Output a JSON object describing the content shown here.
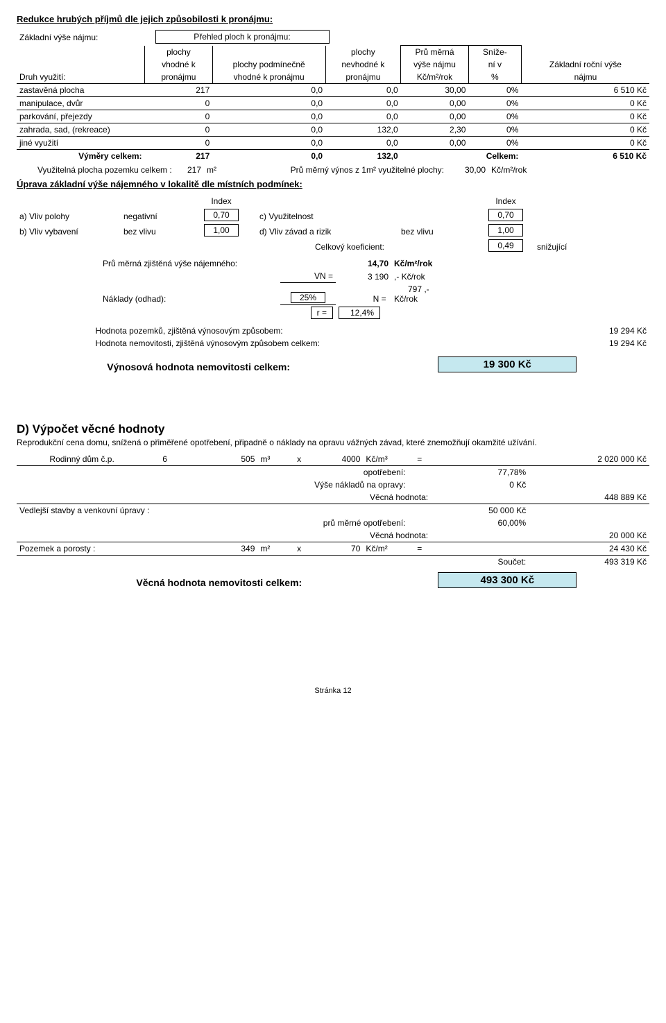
{
  "section1_title": "Redukce hrubých příjmů dle jejich způsobilosti k pronájmu:",
  "overview_label_left": "Základní výše nájmu:",
  "overview_label_right": "Přehled ploch k pronájmu:",
  "headers": {
    "col0": "Druh využití:",
    "col1a": "plochy",
    "col1b": "vhodné k",
    "col1c": "pronájmu",
    "col2a": "plochy podmínečně",
    "col2b": "vhodné k pronájmu",
    "col3a": "plochy",
    "col3b": "nevhodné k",
    "col3c": "pronájmu",
    "col4a": "Prů měrná",
    "col4b": "výše nájmu",
    "col4c": "Kč/m²/rok",
    "col5a": "Sníže-",
    "col5b": "ní v",
    "col5c": "%",
    "col6a": "Základní roční výše",
    "col6b": "nájmu"
  },
  "rows": [
    {
      "label": "zastavěná plocha",
      "c1": "217",
      "c2": "0,0",
      "c3": "0,0",
      "c4": "30,00",
      "c5": "0%",
      "c6": "6 510 Kč"
    },
    {
      "label": "manipulace, dvůr",
      "c1": "0",
      "c2": "0,0",
      "c3": "0,0",
      "c4": "0,00",
      "c5": "0%",
      "c6": "0 Kč"
    },
    {
      "label": "parkování, přejezdy",
      "c1": "0",
      "c2": "0,0",
      "c3": "0,0",
      "c4": "0,00",
      "c5": "0%",
      "c6": "0 Kč"
    },
    {
      "label": "zahrada, sad, (rekreace)",
      "c1": "0",
      "c2": "0,0",
      "c3": "132,0",
      "c4": "2,30",
      "c5": "0%",
      "c6": "0 Kč"
    },
    {
      "label": "jiné využití",
      "c1": "0",
      "c2": "0,0",
      "c3": "0,0",
      "c4": "0,00",
      "c5": "0%",
      "c6": "0 Kč"
    }
  ],
  "totals": {
    "label": "Výměry celkem:",
    "c1": "217",
    "c2": "0,0",
    "c3": "132,0",
    "celkem_label": "Celkem:",
    "c6": "6 510 Kč"
  },
  "usable_area_label": "Využitelná plocha pozemku celkem :",
  "usable_area_val": "217",
  "usable_area_unit": "m²",
  "avg_yield_label": "Prů měrný výnos z 1m² využitelné plochy:",
  "avg_yield_val": "30,00",
  "avg_yield_unit": "Kč/m²/rok",
  "section2_title": "Úprava základní výše nájemného v lokalitě dle místních podmínek:",
  "index_label": "Index",
  "i_a_label": "a) Vliv polohy",
  "i_a_text": "negativní",
  "i_a_val": "0,70",
  "i_c_label": "c) Využitelnost",
  "i_c_val": "0,70",
  "i_b_label": "b) Vliv vybavení",
  "i_b_text": "bez vlivu",
  "i_b_val": "1,00",
  "i_d_label": "d) Vliv závad a rizik",
  "i_d_text": "bez vlivu",
  "i_d_val": "1,00",
  "coef_label": "Celkový koeficient:",
  "coef_val": "0,49",
  "coef_effect": "snižující",
  "avg_rent_label": "Prů měrná zjištěná výše nájemného:",
  "avg_rent_val": "14,70",
  "avg_rent_unit": "Kč/m²/rok",
  "vn_label": "VN =",
  "vn_val": "3 190",
  "vn_unit": ",- Kč/rok",
  "naklady_label": "Náklady (odhad):",
  "naklady_pct": "25%",
  "n_label": "N =",
  "n_val": "797",
  "n_unit": ",- Kč/rok",
  "r_label": "r =",
  "r_val": "12,4%",
  "result1_label": "Hodnota pozemků, zjištěná výnosovým způsobem:",
  "result1_val": "19 294 Kč",
  "result2_label": "Hodnota nemovitosti, zjištěná výnosovým způsobem celkem:",
  "result2_val": "19 294 Kč",
  "result3_label": "Výnosová hodnota nemovitosti celkem:",
  "result3_val": "19 300 Kč",
  "sectionD_title": "D) Výpočet věcné hodnoty",
  "sectionD_desc": "Reprodukční cena domu, snížená o přiměřené opotřebení, připadně o náklady na opravu vážných závad, které znemožňují okamžité užívání.",
  "rd_label": "Rodinný dům č.p.",
  "rd_num": "6",
  "rd_vol": "505",
  "rd_vol_unit": "m³",
  "rd_x": "x",
  "rd_price": "4000",
  "rd_price_unit": "Kč/m³",
  "rd_eq": "=",
  "rd_total": "2 020 000 Kč",
  "opot_label": "opotřebení:",
  "opot_val": "77,78%",
  "repairs_label": "Výše nákladů na opravy:",
  "repairs_val": "0 Kč",
  "vecna1_label": "Věcná hodnota:",
  "vecna1_val": "448 889 Kč",
  "vedlejsi_label": "Vedlejší stavby a venkovní úpravy :",
  "vedlejsi_val": "50 000 Kč",
  "prum_opot_label": "prů měrné opotřebení:",
  "prum_opot_val": "60,00%",
  "vecna2_label": "Věcná hodnota:",
  "vecna2_val": "20 000 Kč",
  "pozemek_label": "Pozemek a porosty :",
  "pozemek_area": "349",
  "pozemek_unit": "m²",
  "pozemek_x": "x",
  "pozemek_price": "70",
  "pozemek_price_unit": "Kč/m²",
  "pozemek_eq": "=",
  "pozemek_total": "24 430 Kč",
  "soucet_label": "Součet:",
  "soucet_val": "493 319 Kč",
  "vecna_celkem_label": "Věcná hodnota nemovitosti celkem:",
  "vecna_celkem_val": "493 300 Kč",
  "footer": "Stránka 12"
}
